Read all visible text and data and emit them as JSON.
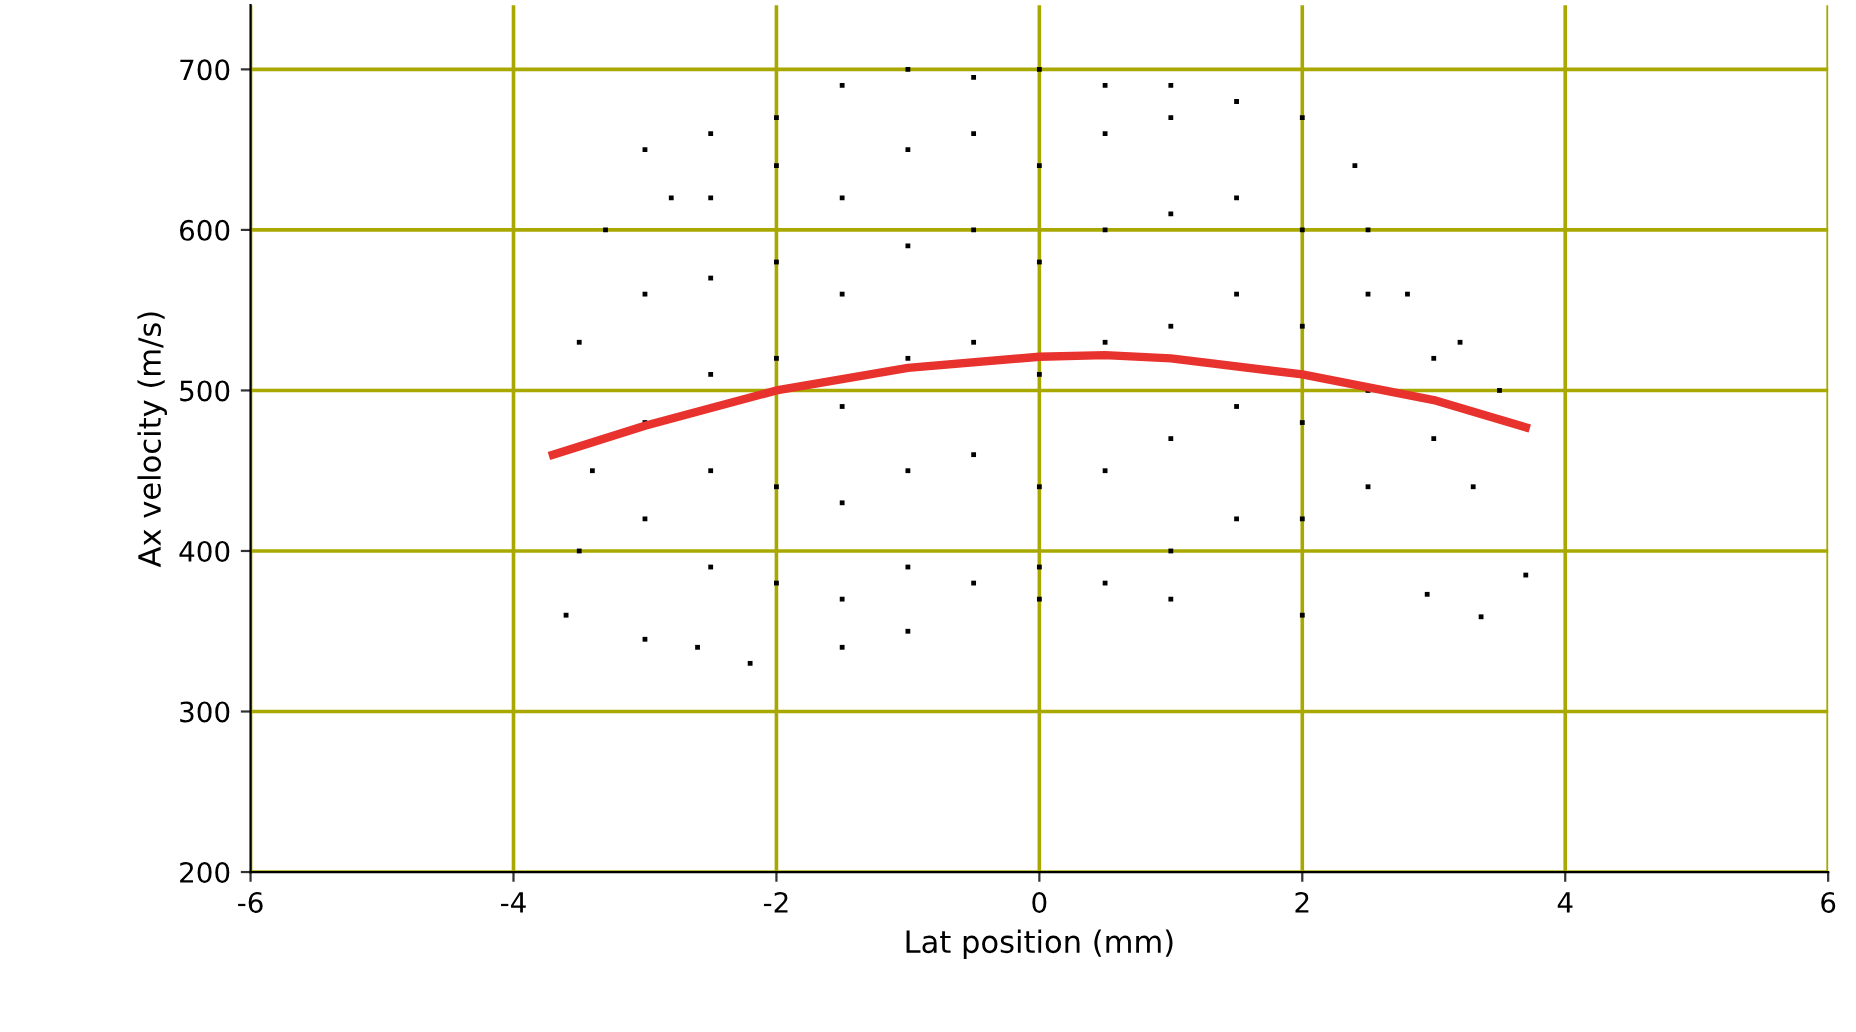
{
  "chart_data": {
    "type": "scatter",
    "xlabel": "Lat position (mm)",
    "ylabel": "Ax velocity (m/s)",
    "xlim": [
      -6,
      6
    ],
    "ylim": [
      200,
      740
    ],
    "xticks": [
      -6,
      -4,
      -2,
      0,
      2,
      4,
      6
    ],
    "yticks": [
      200,
      300,
      400,
      500,
      600,
      700
    ],
    "grid": true,
    "legend": false,
    "series": [
      {
        "color": "#000000",
        "marker": "square",
        "x": [
          -3.6,
          -3.5,
          -3.4,
          -3.5,
          -3.3,
          -3.0,
          -2.8,
          -2.5,
          -2.0,
          -1.5,
          -1.0,
          -0.5,
          0.0,
          0.5,
          1.0,
          1.5,
          2.0,
          2.4,
          2.5,
          2.8,
          3.2,
          3.5,
          3.3,
          2.95,
          3.7,
          3.36,
          2.0,
          1.0,
          0.0,
          -1.0,
          -1.5,
          -2.2,
          -2.6,
          -3.0,
          -3.0,
          -3.0,
          -3.0,
          -2.5,
          -2.5,
          -2.5,
          -2.5,
          -2.5,
          -2.0,
          -2.0,
          -2.0,
          -2.0,
          -2.0,
          -1.5,
          -1.5,
          -1.5,
          -1.5,
          -1.5,
          -1.0,
          -1.0,
          -1.0,
          -1.0,
          -1.0,
          -0.5,
          -0.5,
          -0.5,
          -0.5,
          -0.5,
          0.0,
          0.0,
          0.0,
          0.0,
          0.0,
          0.5,
          0.5,
          0.5,
          0.5,
          0.5,
          1.0,
          1.0,
          1.0,
          1.0,
          1.0,
          1.5,
          1.5,
          1.5,
          1.5,
          2.0,
          2.0,
          2.0,
          2.0,
          2.5,
          2.5,
          2.5,
          3.0,
          3.0
        ],
        "values": [
          360,
          400,
          450,
          530,
          600,
          650,
          620,
          660,
          670,
          690,
          700,
          695,
          700,
          690,
          690,
          680,
          670,
          640,
          600,
          560,
          530,
          500,
          440,
          373,
          385,
          359,
          360,
          370,
          370,
          350,
          340,
          330,
          340,
          345,
          420,
          480,
          560,
          390,
          450,
          510,
          570,
          620,
          380,
          440,
          520,
          580,
          640,
          370,
          430,
          490,
          560,
          620,
          390,
          450,
          520,
          590,
          650,
          380,
          460,
          530,
          600,
          660,
          390,
          440,
          510,
          580,
          640,
          380,
          450,
          530,
          600,
          660,
          400,
          470,
          540,
          610,
          670,
          420,
          490,
          560,
          620,
          420,
          480,
          540,
          600,
          440,
          500,
          560,
          470,
          520
        ]
      },
      {
        "type": "line",
        "color": "#e8322e",
        "x": [
          -3.7,
          -3.0,
          -2.0,
          -1.0,
          0.0,
          0.5,
          1.0,
          2.0,
          3.0,
          3.7
        ],
        "values": [
          460,
          478,
          500,
          514,
          521,
          522,
          520,
          510,
          494,
          477
        ]
      }
    ]
  }
}
